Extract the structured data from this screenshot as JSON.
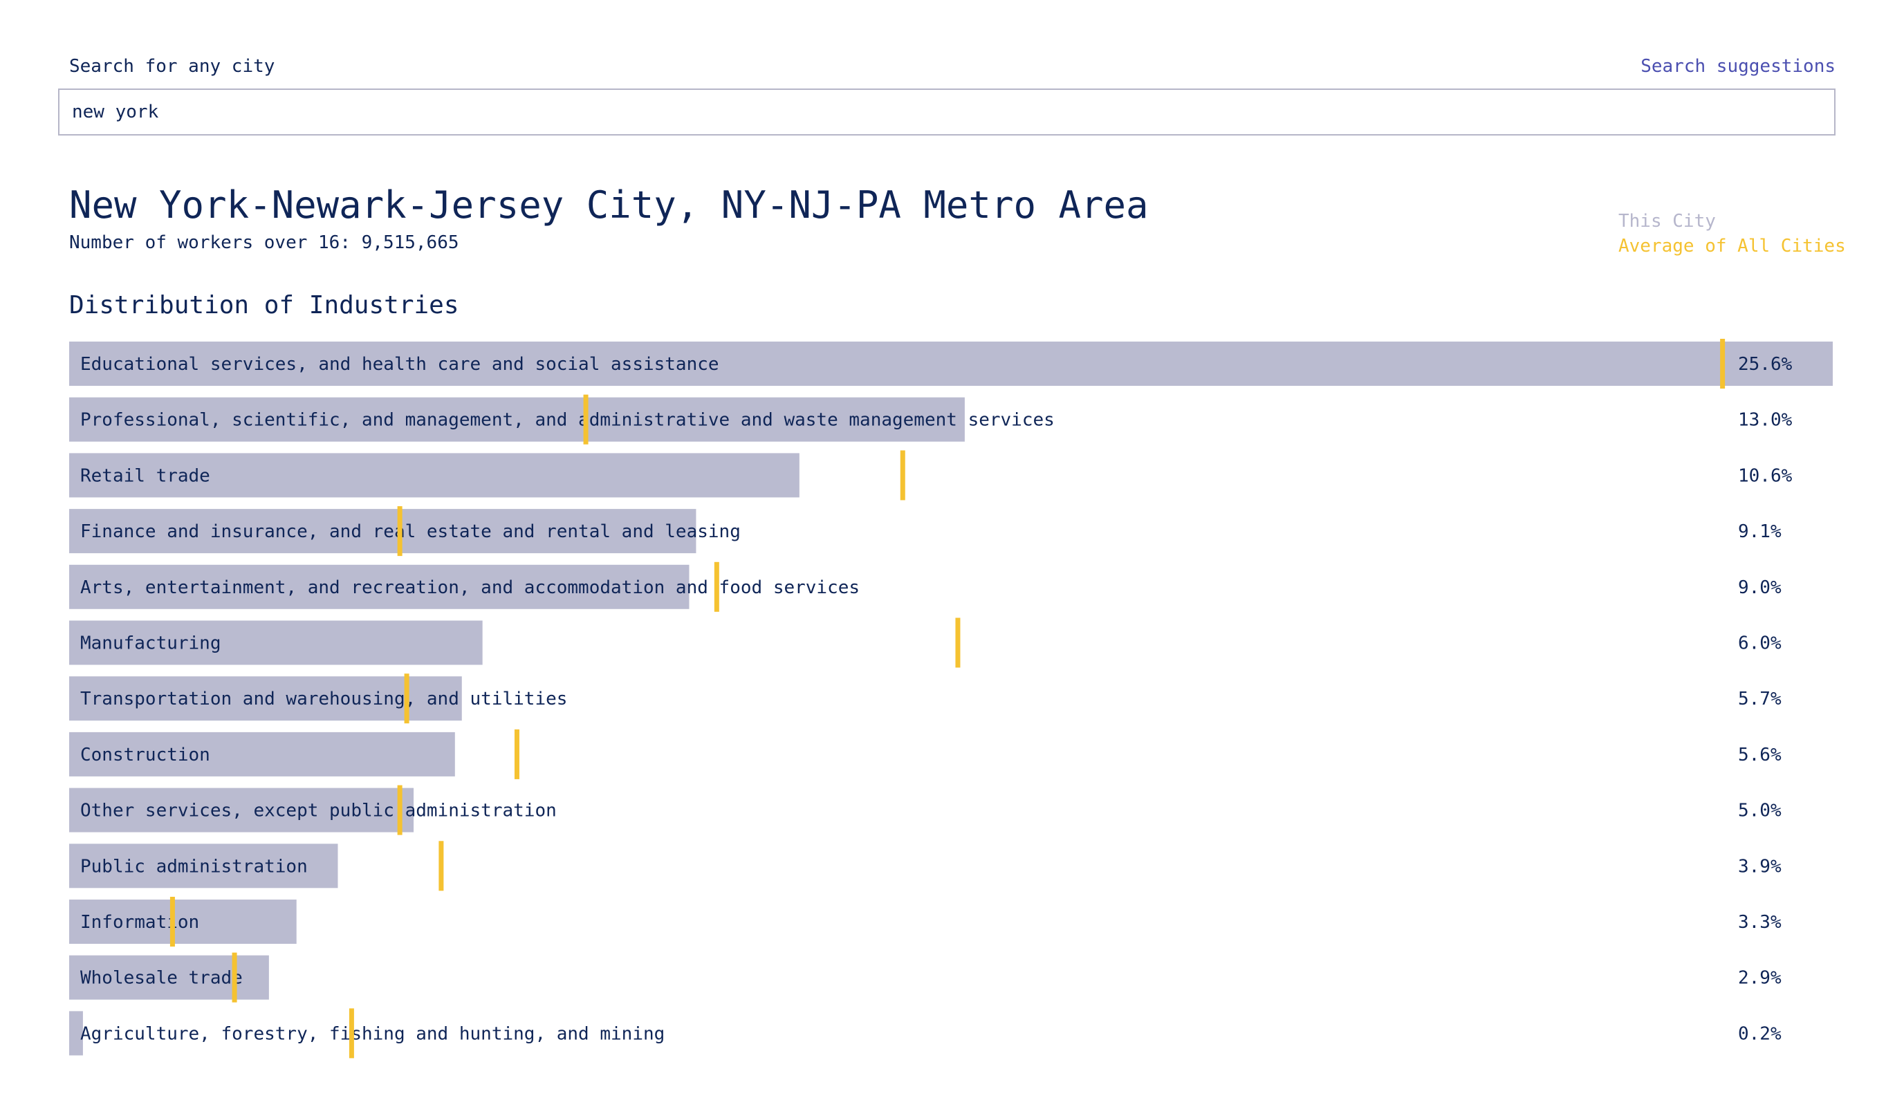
{
  "search": {
    "label": "Search for any city",
    "value": "new york",
    "suggestions_link": "Search suggestions"
  },
  "city": {
    "title": "New York-Newark-Jersey City, NY-NJ-PA Metro Area",
    "workers_text": "Number of workers over 16: 9,515,665"
  },
  "legend": {
    "this_city": "This City",
    "average": "Average of All Cities"
  },
  "section": {
    "title": "Distribution of Industries"
  },
  "colors": {
    "bar": "#babbd0",
    "average_marker": "#f5c231",
    "text": "#0f2557",
    "link": "#4b4fb0"
  },
  "chart_data": {
    "type": "bar",
    "orientation": "horizontal",
    "title": "Distribution of Industries",
    "categories": [
      "Educational services, and health care and social assistance",
      "Professional, scientific, and management, and administrative and waste management services",
      "Retail trade",
      "Finance and insurance, and real estate and rental and leasing",
      "Arts, entertainment, and recreation, and accommodation and food services",
      "Manufacturing",
      "Transportation and warehousing, and utilities",
      "Construction",
      "Other services, except public administration",
      "Public administration",
      "Information",
      "Wholesale trade",
      "Agriculture, forestry, fishing and hunting, and mining"
    ],
    "value_labels": [
      "25.6%",
      "13.0%",
      "10.6%",
      "9.1%",
      "9.0%",
      "6.0%",
      "5.7%",
      "5.6%",
      "5.0%",
      "3.9%",
      "3.3%",
      "2.9%",
      "0.2%"
    ],
    "series": [
      {
        "name": "This City",
        "values": [
          25.6,
          13.0,
          10.6,
          9.1,
          9.0,
          6.0,
          5.7,
          5.6,
          5.0,
          3.9,
          3.3,
          2.9,
          0.2
        ]
      },
      {
        "name": "Average of All Cities",
        "values": [
          24.0,
          7.5,
          12.1,
          4.8,
          9.4,
          12.9,
          4.9,
          6.5,
          4.8,
          5.4,
          1.5,
          2.4,
          4.1
        ]
      }
    ],
    "xlim": [
      0,
      25.6
    ],
    "legend_position": "top-right",
    "grid": false
  }
}
